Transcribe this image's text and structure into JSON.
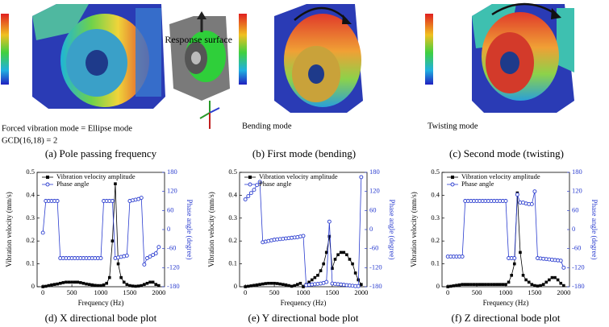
{
  "figure": {
    "panels": [
      {
        "caption": "(a) Pole passing frequency",
        "notes": [
          "Forced vibration mode = Ellipse mode",
          "GCD(16,18) = 2"
        ]
      },
      {
        "caption": "(b) First mode (bending)",
        "label": "Response surface",
        "mode": "Bending mode"
      },
      {
        "caption": "(c) Second mode (twisting)",
        "mode": "Twisting mode"
      }
    ]
  },
  "chart_data": [
    {
      "type": "line",
      "caption": "(d) X directional bode plot",
      "x_label": "Frequency (Hz)",
      "y_label": "Vibration velocity (mm/s)",
      "y2_label": "Phase angle (degree)",
      "x": [
        0,
        50,
        100,
        150,
        200,
        250,
        300,
        350,
        400,
        450,
        500,
        550,
        600,
        650,
        700,
        750,
        800,
        850,
        900,
        950,
        1000,
        1050,
        1100,
        1150,
        1200,
        1250,
        1300,
        1350,
        1400,
        1450,
        1500,
        1550,
        1600,
        1650,
        1700,
        1750,
        1800,
        1850,
        1900,
        1950,
        2000
      ],
      "xlim": [
        -100,
        2100
      ],
      "xticks": [
        0,
        500,
        1000,
        1500,
        2000
      ],
      "ylim": [
        0,
        0.5
      ],
      "yticks": [
        0,
        0.1,
        0.2,
        0.3,
        0.4,
        0.5
      ],
      "y2lim": [
        -180,
        180
      ],
      "y2ticks": [
        -180,
        -120,
        -60,
        0,
        60,
        120,
        180
      ],
      "legend": "upper left",
      "series": [
        {
          "name": "Vibration velocity amplitude",
          "color": "#000000",
          "marker": "square",
          "values": [
            0,
            0.002,
            0.005,
            0.008,
            0.01,
            0.012,
            0.015,
            0.018,
            0.02,
            0.02,
            0.02,
            0.02,
            0.02,
            0.018,
            0.015,
            0.012,
            0.01,
            0.008,
            0.006,
            0.005,
            0.005,
            0.008,
            0.015,
            0.04,
            0.2,
            0.45,
            0.1,
            0.04,
            0.02,
            0.01,
            0.005,
            0.003,
            0.002,
            0.003,
            0.005,
            0.01,
            0.015,
            0.02,
            0.02,
            0.01,
            0.005
          ]
        },
        {
          "name": "Phase angle",
          "color": "#2a3ccf",
          "marker": "circle",
          "axis": "y2",
          "values": [
            -10,
            90,
            90,
            90,
            90,
            90,
            -90,
            -90,
            -90,
            -90,
            -90,
            -90,
            -90,
            -90,
            -90,
            -90,
            -90,
            -90,
            -90,
            -90,
            -90,
            90,
            90,
            90,
            90,
            -90,
            -88,
            -86,
            -84,
            -82,
            90,
            92,
            94,
            96,
            100,
            -110,
            -90,
            -85,
            -80,
            -75,
            -55
          ]
        }
      ]
    },
    {
      "type": "line",
      "caption": "(e) Y directional bode plot",
      "x_label": "Frequency (Hz)",
      "y_label": "Vibration velocity (mm/s)",
      "y2_label": "Phase angle (degree)",
      "x": [
        0,
        50,
        100,
        150,
        200,
        250,
        300,
        350,
        400,
        450,
        500,
        550,
        600,
        650,
        700,
        750,
        800,
        850,
        900,
        950,
        1000,
        1050,
        1100,
        1150,
        1200,
        1250,
        1300,
        1350,
        1400,
        1450,
        1500,
        1550,
        1600,
        1650,
        1700,
        1750,
        1800,
        1850,
        1900,
        1950,
        2000
      ],
      "xlim": [
        -100,
        2100
      ],
      "xticks": [
        0,
        500,
        1000,
        1500,
        2000
      ],
      "ylim": [
        0,
        0.5
      ],
      "yticks": [
        0,
        0.1,
        0.2,
        0.3,
        0.4,
        0.5
      ],
      "y2lim": [
        -180,
        180
      ],
      "y2ticks": [
        -180,
        -120,
        -60,
        0,
        60,
        120,
        180
      ],
      "legend": "upper left",
      "series": [
        {
          "name": "Vibration velocity amplitude",
          "color": "#000000",
          "marker": "square",
          "values": [
            0,
            0.002,
            0.004,
            0.006,
            0.008,
            0.01,
            0.012,
            0.014,
            0.015,
            0.015,
            0.015,
            0.014,
            0.012,
            0.01,
            0.008,
            0.005,
            0.002,
            0.005,
            0.01,
            0.015,
            0.0,
            0.01,
            0.02,
            0.03,
            0.04,
            0.05,
            0.07,
            0.1,
            0.15,
            0.22,
            0.08,
            0.12,
            0.14,
            0.15,
            0.15,
            0.14,
            0.12,
            0.1,
            0.06,
            0.03,
            0.01
          ]
        },
        {
          "name": "Phase angle",
          "color": "#2a3ccf",
          "marker": "circle",
          "axis": "y2",
          "values": [
            95,
            105,
            115,
            125,
            140,
            150,
            -40,
            -38,
            -36,
            -34,
            -32,
            -31,
            -30,
            -29,
            -28,
            -27,
            -26,
            -25,
            -24,
            -22,
            -20,
            -175,
            -174,
            -173,
            -172,
            -171,
            -170,
            -168,
            -165,
            25,
            -170,
            -171,
            -172,
            -173,
            -174,
            -175,
            -176,
            -177,
            -178,
            -178,
            165
          ]
        }
      ]
    },
    {
      "type": "line",
      "caption": "(f) Z directional bode plot",
      "x_label": "Frequency (Hz)",
      "y_label": "Vibration velocity (mm/s)",
      "y2_label": "Phase angle (degree)",
      "x": [
        0,
        50,
        100,
        150,
        200,
        250,
        300,
        350,
        400,
        450,
        500,
        550,
        600,
        650,
        700,
        750,
        800,
        850,
        900,
        950,
        1000,
        1050,
        1100,
        1150,
        1200,
        1250,
        1300,
        1350,
        1400,
        1450,
        1500,
        1550,
        1600,
        1650,
        1700,
        1750,
        1800,
        1850,
        1900,
        1950,
        2000
      ],
      "xlim": [
        -100,
        2100
      ],
      "xticks": [
        0,
        500,
        1000,
        1500,
        2000
      ],
      "ylim": [
        0,
        0.5
      ],
      "yticks": [
        0,
        0.1,
        0.2,
        0.3,
        0.4,
        0.5
      ],
      "y2lim": [
        -180,
        180
      ],
      "y2ticks": [
        -180,
        -120,
        -60,
        0,
        60,
        120,
        180
      ],
      "legend": "upper left",
      "series": [
        {
          "name": "Vibration velocity amplitude",
          "color": "#000000",
          "marker": "square",
          "values": [
            0,
            0.002,
            0.004,
            0.006,
            0.008,
            0.01,
            0.01,
            0.01,
            0.01,
            0.01,
            0.01,
            0.01,
            0.01,
            0.01,
            0.01,
            0.01,
            0.01,
            0.01,
            0.01,
            0.01,
            0.01,
            0.02,
            0.05,
            0.1,
            0.41,
            0.15,
            0.05,
            0.03,
            0.02,
            0.01,
            0.005,
            0.003,
            0.005,
            0.01,
            0.02,
            0.03,
            0.04,
            0.04,
            0.03,
            0.015,
            0.005
          ]
        },
        {
          "name": "Phase angle",
          "color": "#2a3ccf",
          "marker": "circle",
          "axis": "y2",
          "values": [
            -85,
            -85,
            -85,
            -85,
            -85,
            -85,
            90,
            90,
            90,
            90,
            90,
            90,
            90,
            90,
            90,
            90,
            90,
            90,
            90,
            90,
            90,
            -90,
            -90,
            -90,
            110,
            85,
            85,
            82,
            80,
            80,
            120,
            -90,
            -91,
            -92,
            -93,
            -94,
            -95,
            -96,
            -97,
            -98,
            -120
          ]
        }
      ]
    }
  ]
}
